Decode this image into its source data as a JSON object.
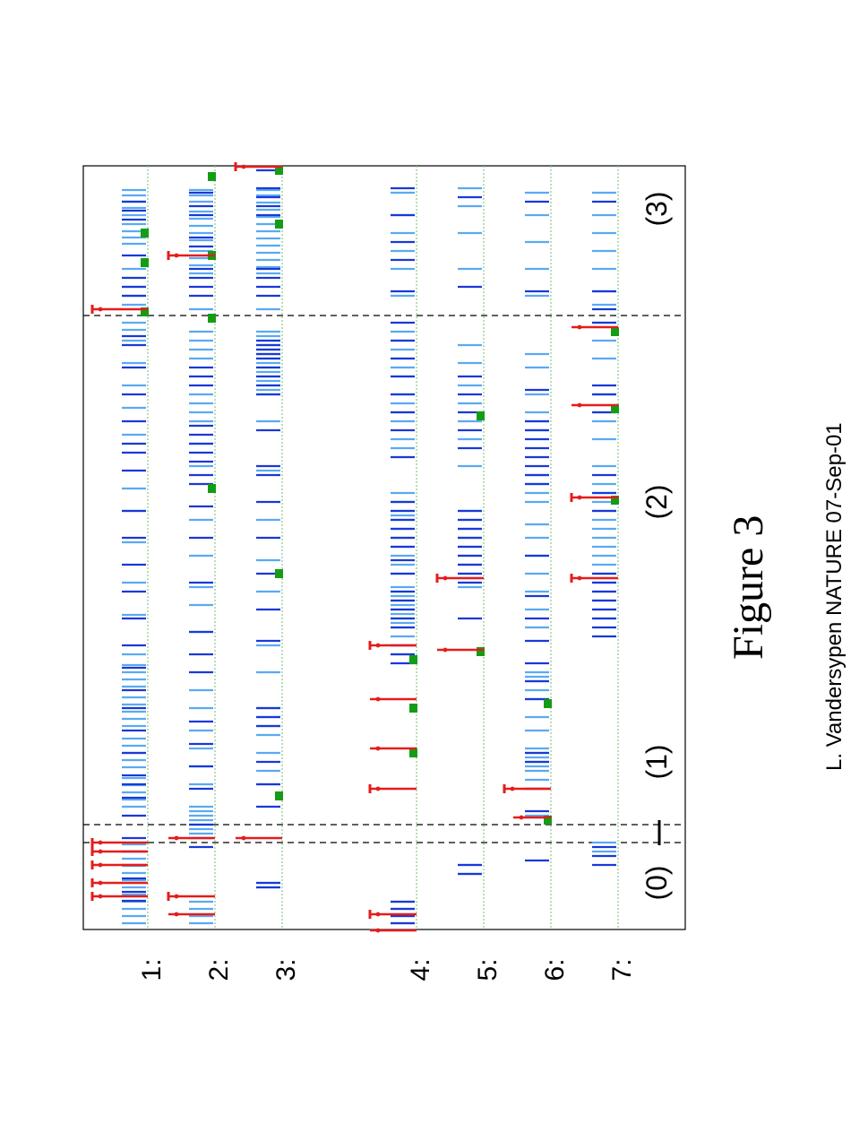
{
  "figure": {
    "caption": "Figure 3",
    "credit": "L. Vandersypen NATURE 07-Sep-01"
  },
  "rows": [
    {
      "label": "1:",
      "light": [
        1030,
        1022,
        1014,
        1006,
        998,
        990,
        982,
        974,
        966,
        958,
        950,
        942,
        900,
        892,
        884,
        876,
        868,
        856,
        848,
        840,
        832,
        824,
        810,
        802,
        794,
        786,
        778,
        766,
        758,
        750,
        742,
        730,
        686,
        650,
        605,
        570,
        545,
        485,
        455,
        430,
        405,
        380,
        368,
        360,
        340,
        330,
        320,
        300,
        272,
        265,
        258,
        250,
        240,
        232,
        225,
        218,
        212
      ],
      "dark": [
        1005,
        995,
        980,
        965,
        950,
        935,
        910,
        890,
        875,
        865,
        840,
        815,
        790,
        770,
        745,
        720,
        690,
        660,
        630,
        600,
        570,
        525,
        505,
        495,
        470,
        440,
        410,
        385,
        375,
        330,
        320,
        310,
        285,
        245,
        235,
        225
      ],
      "pulses": [
        {
          "pos": 1000,
          "len": 62,
          "cap": true
        },
        {
          "pos": 985,
          "len": 62,
          "cap": true
        },
        {
          "pos": 965,
          "len": 62,
          "cap": true
        },
        {
          "pos": 950,
          "len": 62,
          "cap": true
        },
        {
          "pos": 940,
          "len": 62,
          "cap": true
        },
        {
          "pos": 345,
          "len": 62,
          "cap": true
        }
      ],
      "green": [
        348,
        293,
        260
      ]
    },
    {
      "label": "2:",
      "light": [
        1030,
        1022,
        1014,
        1006,
        930,
        925,
        920,
        915,
        910,
        905,
        900,
        875,
        855,
        835,
        815,
        790,
        770,
        705,
        675,
        655,
        620,
        580,
        520,
        495,
        470,
        460,
        450,
        440,
        400,
        390,
        380,
        370,
        345,
        305,
        296,
        288,
        280,
        268,
        260,
        252,
        244,
        236,
        225,
        218,
        212
      ],
      "dark": [
        945,
        935,
        920,
        880,
        855,
        830,
        805,
        750,
        730,
        705,
        650,
        600,
        565,
        540,
        530,
        515,
        505,
        495,
        485,
        475,
        430,
        420,
        410,
        330,
        320,
        310,
        300,
        275,
        265,
        240,
        230,
        215
      ],
      "pulses": [
        {
          "pos": 1020,
          "len": 52,
          "cap": false
        },
        {
          "pos": 1000,
          "len": 52,
          "cap": true
        },
        {
          "pos": 935,
          "len": 52,
          "cap": false
        },
        {
          "pos": 285,
          "len": 52,
          "cap": true
        }
      ],
      "green": [
        545,
        355,
        285,
        197
      ]
    },
    {
      "label": "3:",
      "light": [
        990,
        985,
        875,
        860,
        840,
        820,
        810,
        800,
        790,
        750,
        720,
        660,
        625,
        580,
        525,
        470,
        440,
        435,
        430,
        425,
        420,
        415,
        410,
        405,
        400,
        395,
        390,
        385,
        380,
        375,
        370,
        345,
        305,
        298,
        290,
        282,
        274,
        266,
        258,
        250,
        242,
        234,
        226,
        218,
        212
      ],
      "dark": [
        990,
        985,
        900,
        875,
        850,
        810,
        800,
        790,
        715,
        680,
        640,
        600,
        560,
        530,
        520,
        480,
        440,
        430,
        420,
        410,
        400,
        395,
        390,
        385,
        380,
        330,
        320,
        310,
        300,
        240,
        230,
        220,
        210,
        190
      ],
      "pulses": [
        {
          "pos": 935,
          "len": 52,
          "cap": false
        },
        {
          "pos": 186,
          "len": 52,
          "cap": true
        }
      ],
      "green": [
        888,
        640,
        250,
        190
      ]
    },
    {
      "label": "4:",
      "light": [
        1030,
        1022,
        1014,
        1006,
        730,
        720,
        710,
        700,
        695,
        690,
        685,
        680,
        675,
        670,
        665,
        660,
        655,
        640,
        630,
        620,
        610,
        600,
        590,
        580,
        575,
        570,
        560,
        550,
        500,
        490,
        470,
        460,
        450,
        440,
        420,
        410,
        400,
        390,
        380,
        370,
        330,
        300,
        280,
        260,
        240,
        215
      ],
      "dark": [
        1030,
        1022,
        1014,
        1006,
        740,
        730,
        720,
        700,
        690,
        680,
        670,
        660,
        640,
        625,
        610,
        600,
        590,
        580,
        570,
        560,
        510,
        480,
        460,
        440,
        420,
        400,
        380,
        360,
        325,
        290,
        270,
        240,
        210
      ],
      "pulses": [
        {
          "pos": 1038,
          "len": 52,
          "cap": false
        },
        {
          "pos": 1020,
          "len": 52,
          "cap": true
        },
        {
          "pos": 880,
          "len": 52,
          "cap": true
        },
        {
          "pos": 835,
          "len": 52,
          "cap": false
        },
        {
          "pos": 780,
          "len": 52,
          "cap": false
        },
        {
          "pos": 720,
          "len": 52,
          "cap": true
        }
      ],
      "green": [
        840,
        790,
        736
      ]
    },
    {
      "label": "5:",
      "light": [
        975,
        965,
        655,
        645,
        640,
        630,
        620,
        610,
        600,
        590,
        580,
        570,
        520,
        490,
        470,
        450,
        430,
        405,
        385,
        300,
        260,
        230,
        210
      ],
      "dark": [
        975,
        965,
        690,
        650,
        640,
        630,
        620,
        610,
        600,
        590,
        580,
        570,
        500,
        480,
        460,
        440,
        420,
        320,
        220
      ],
      "pulses": [
        {
          "pos": 645,
          "len": 52,
          "cap": true
        },
        {
          "pos": 725,
          "len": 52,
          "cap": false
        }
      ],
      "green": [
        727,
        464
      ]
    },
    {
      "label": "6:",
      "light": [
        910,
        880,
        870,
        860,
        855,
        850,
        845,
        840,
        835,
        815,
        800,
        780,
        770,
        760,
        755,
        750,
        700,
        680,
        660,
        640,
        620,
        600,
        585,
        560,
        550,
        540,
        530,
        480,
        470,
        460,
        440,
        410,
        395,
        330,
        300,
        270,
        240,
        215
      ],
      "dark": [
        960,
        905,
        880,
        850,
        840,
        780,
        760,
        740,
        715,
        690,
        665,
        620,
        540,
        530,
        520,
        510,
        500,
        490,
        480,
        470,
        435,
        325,
        225
      ],
      "pulses": [
        {
          "pos": 912,
          "len": 42,
          "cap": false
        },
        {
          "pos": 880,
          "len": 52,
          "cap": true
        }
      ],
      "green": [
        915,
        785
      ]
    },
    {
      "label": "7:",
      "light": [
        950,
        940,
        690,
        680,
        670,
        660,
        650,
        640,
        630,
        620,
        610,
        600,
        590,
        580,
        570,
        560,
        550,
        540,
        520,
        490,
        470,
        460,
        440,
        400,
        380,
        360,
        340,
        325,
        300,
        280,
        260,
        240,
        215
      ],
      "dark": [
        965,
        955,
        945,
        710,
        700,
        690,
        680,
        670,
        660,
        650,
        640,
        570,
        550,
        530,
        460,
        440,
        430,
        360,
        345,
        325,
        225
      ],
      "pulses": [
        {
          "pos": 645,
          "len": 52,
          "cap": true
        },
        {
          "pos": 555,
          "len": 52,
          "cap": true
        },
        {
          "pos": 452,
          "len": 52,
          "cap": false
        },
        {
          "pos": 365,
          "len": 52,
          "cap": false
        }
      ],
      "green": [
        558,
        456,
        370
      ]
    }
  ],
  "sections": [
    {
      "label": "(0)"
    },
    {
      "label": "(1)"
    },
    {
      "label": "(2)"
    },
    {
      "label": "(3)"
    }
  ],
  "colors": {
    "light_line": "#5aaaf2",
    "dark_line": "#1a39d6",
    "pulse": "#e51c1c",
    "green_marker": "#159c15",
    "baseline": "#8ac98a",
    "dashed": "#000000"
  }
}
